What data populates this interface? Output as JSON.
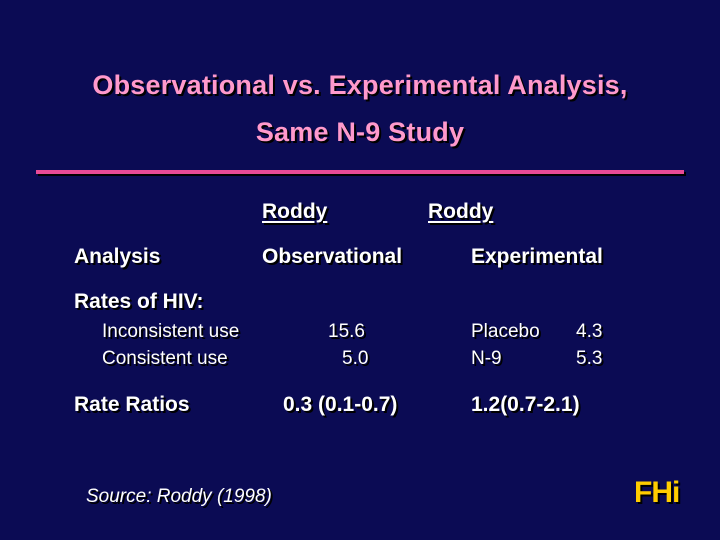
{
  "title": {
    "line1": "Observational vs. Experimental Analysis,",
    "line2": "Same N-9 Study"
  },
  "columns": {
    "observational_head": "Roddy",
    "observational_label": "Observational",
    "experimental_head": "Roddy",
    "experimental_label": "Experimental"
  },
  "analysis_label": "Analysis",
  "rates": {
    "label": "Rates of HIV:",
    "rows": [
      {
        "name": "Inconsistent use",
        "observational": "15.6",
        "exp_group": "Placebo",
        "exp_value": "4.3"
      },
      {
        "name": "Consistent use",
        "observational": "5.0",
        "exp_group": "N-9",
        "exp_value": "5.3"
      }
    ]
  },
  "rate_ratios": {
    "label": "Rate Ratios",
    "observational": "0.3 (0.1-0.7)",
    "experimental": "1.2(0.7-2.1)"
  },
  "source": "Source:  Roddy (1998)",
  "logo": "FHi",
  "colors": {
    "background": "#0b0b54",
    "title": "#ff99cc",
    "rule": "#e84a96",
    "text": "#ffffff",
    "logo": "#ffcc00"
  }
}
